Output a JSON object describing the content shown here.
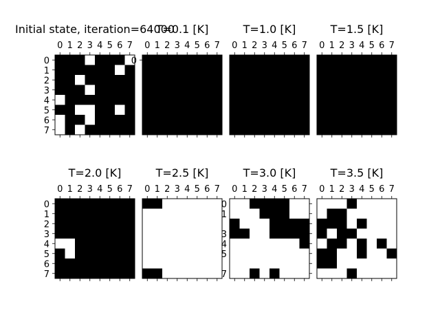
{
  "chart_data": [
    {
      "type": "heatmap",
      "title": "Initial state, iteration=64000",
      "x_ticks": [
        "0",
        "1",
        "2",
        "3",
        "4",
        "5",
        "6",
        "7"
      ],
      "y_ticks": [
        "0",
        "1",
        "2",
        "3",
        "4",
        "5",
        "6",
        "7"
      ],
      "grid": [
        [
          0,
          0,
          0,
          1,
          0,
          0,
          0,
          1
        ],
        [
          0,
          0,
          0,
          0,
          0,
          0,
          1,
          0
        ],
        [
          0,
          0,
          1,
          0,
          0,
          0,
          0,
          0
        ],
        [
          0,
          0,
          0,
          1,
          0,
          0,
          0,
          0
        ],
        [
          1,
          0,
          0,
          0,
          0,
          0,
          0,
          0
        ],
        [
          0,
          0,
          1,
          1,
          0,
          0,
          1,
          0
        ],
        [
          1,
          0,
          0,
          1,
          0,
          0,
          0,
          0
        ],
        [
          1,
          0,
          1,
          0,
          0,
          0,
          0,
          0
        ]
      ]
    },
    {
      "type": "heatmap",
      "title": "T=0.1 [K]",
      "x_ticks": [
        "0",
        "1",
        "2",
        "3",
        "4",
        "5",
        "6",
        "7"
      ],
      "y_ticks": [
        "0"
      ],
      "grid": [
        [
          0,
          0,
          0,
          0,
          0,
          0,
          0,
          0
        ],
        [
          0,
          0,
          0,
          0,
          0,
          0,
          0,
          0
        ],
        [
          0,
          0,
          0,
          0,
          0,
          0,
          0,
          0
        ],
        [
          0,
          0,
          0,
          0,
          0,
          0,
          0,
          0
        ],
        [
          0,
          0,
          0,
          0,
          0,
          0,
          0,
          0
        ],
        [
          0,
          0,
          0,
          0,
          0,
          0,
          0,
          0
        ],
        [
          0,
          0,
          0,
          0,
          0,
          0,
          0,
          0
        ],
        [
          0,
          0,
          0,
          0,
          0,
          0,
          0,
          0
        ]
      ]
    },
    {
      "type": "heatmap",
      "title": "T=1.0 [K]",
      "x_ticks": [
        "0",
        "1",
        "2",
        "3",
        "4",
        "5",
        "6",
        "7"
      ],
      "y_ticks": [],
      "grid": [
        [
          0,
          0,
          0,
          0,
          0,
          0,
          0,
          0
        ],
        [
          0,
          0,
          0,
          0,
          0,
          0,
          0,
          0
        ],
        [
          0,
          0,
          0,
          0,
          0,
          0,
          0,
          0
        ],
        [
          0,
          0,
          0,
          0,
          0,
          0,
          0,
          0
        ],
        [
          0,
          0,
          0,
          0,
          0,
          0,
          0,
          0
        ],
        [
          0,
          0,
          0,
          0,
          0,
          0,
          0,
          0
        ],
        [
          0,
          0,
          0,
          0,
          0,
          0,
          0,
          0
        ],
        [
          0,
          0,
          0,
          0,
          0,
          0,
          0,
          0
        ]
      ]
    },
    {
      "type": "heatmap",
      "title": "T=1.5 [K]",
      "x_ticks": [
        "0",
        "1",
        "2",
        "3",
        "4",
        "5",
        "6",
        "7"
      ],
      "y_ticks": [],
      "grid": [
        [
          0,
          0,
          0,
          0,
          0,
          0,
          0,
          0
        ],
        [
          0,
          0,
          0,
          0,
          0,
          0,
          0,
          0
        ],
        [
          0,
          0,
          0,
          0,
          0,
          0,
          0,
          0
        ],
        [
          0,
          0,
          0,
          0,
          0,
          0,
          0,
          0
        ],
        [
          0,
          0,
          0,
          0,
          0,
          0,
          0,
          0
        ],
        [
          0,
          0,
          0,
          0,
          0,
          0,
          0,
          0
        ],
        [
          0,
          0,
          0,
          0,
          0,
          0,
          0,
          0
        ],
        [
          0,
          0,
          0,
          0,
          0,
          0,
          0,
          0
        ]
      ]
    },
    {
      "type": "heatmap",
      "title": "T=2.0 [K]",
      "x_ticks": [
        "0",
        "1",
        "2",
        "3",
        "4",
        "5",
        "6",
        "7"
      ],
      "y_ticks": [
        "0",
        "1",
        "2",
        "3",
        "4",
        "5",
        "6",
        "7"
      ],
      "grid": [
        [
          0,
          0,
          0,
          0,
          0,
          0,
          0,
          0
        ],
        [
          0,
          0,
          0,
          0,
          0,
          0,
          0,
          0
        ],
        [
          0,
          0,
          0,
          0,
          0,
          0,
          0,
          0
        ],
        [
          0,
          0,
          0,
          0,
          0,
          0,
          0,
          0
        ],
        [
          1,
          1,
          0,
          0,
          0,
          0,
          0,
          0
        ],
        [
          0,
          1,
          0,
          0,
          0,
          0,
          0,
          0
        ],
        [
          0,
          0,
          0,
          0,
          0,
          0,
          0,
          0
        ],
        [
          0,
          0,
          0,
          0,
          0,
          0,
          0,
          0
        ]
      ]
    },
    {
      "type": "heatmap",
      "title": "T=2.5 [K]",
      "x_ticks": [
        "0",
        "1",
        "2",
        "3",
        "4",
        "5",
        "6",
        "7"
      ],
      "y_ticks": [],
      "grid": [
        [
          0,
          0,
          1,
          1,
          1,
          1,
          1,
          1
        ],
        [
          1,
          1,
          1,
          1,
          1,
          1,
          1,
          1
        ],
        [
          1,
          1,
          1,
          1,
          1,
          1,
          1,
          1
        ],
        [
          1,
          1,
          1,
          1,
          1,
          1,
          1,
          1
        ],
        [
          1,
          1,
          1,
          1,
          1,
          1,
          1,
          1
        ],
        [
          1,
          1,
          1,
          1,
          1,
          1,
          1,
          1
        ],
        [
          1,
          1,
          1,
          1,
          1,
          1,
          1,
          1
        ],
        [
          0,
          0,
          1,
          1,
          1,
          1,
          1,
          1
        ]
      ]
    },
    {
      "type": "heatmap",
      "title": "T=3.0 [K]",
      "x_ticks": [
        "0",
        "1",
        "2",
        "3",
        "4",
        "5",
        "6",
        "7"
      ],
      "y_ticks": [
        "0",
        "1",
        "3",
        "4",
        "5",
        "7"
      ],
      "y_tick_rows": [
        0,
        1,
        3,
        4,
        5,
        7
      ],
      "grid": [
        [
          1,
          1,
          0,
          0,
          0,
          0,
          1,
          1
        ],
        [
          1,
          1,
          1,
          0,
          0,
          0,
          1,
          1
        ],
        [
          0,
          1,
          1,
          1,
          0,
          0,
          0,
          0
        ],
        [
          0,
          0,
          1,
          1,
          0,
          0,
          0,
          0
        ],
        [
          1,
          1,
          1,
          1,
          1,
          1,
          1,
          0
        ],
        [
          1,
          1,
          1,
          1,
          1,
          1,
          1,
          1
        ],
        [
          1,
          1,
          1,
          1,
          1,
          1,
          1,
          1
        ],
        [
          1,
          1,
          0,
          1,
          0,
          1,
          1,
          1
        ]
      ]
    },
    {
      "type": "heatmap",
      "title": "T=3.5 [K]",
      "x_ticks": [
        "0",
        "1",
        "2",
        "3",
        "4",
        "5",
        "6",
        "7"
      ],
      "y_ticks": [],
      "grid": [
        [
          1,
          1,
          1,
          0,
          1,
          1,
          1,
          1
        ],
        [
          1,
          0,
          0,
          1,
          1,
          1,
          1,
          1
        ],
        [
          0,
          0,
          0,
          1,
          0,
          1,
          1,
          1
        ],
        [
          0,
          1,
          0,
          0,
          1,
          1,
          1,
          1
        ],
        [
          1,
          0,
          0,
          1,
          0,
          1,
          0,
          1
        ],
        [
          0,
          0,
          1,
          1,
          0,
          1,
          1,
          0
        ],
        [
          0,
          0,
          1,
          1,
          1,
          1,
          1,
          1
        ],
        [
          1,
          1,
          1,
          0,
          1,
          1,
          1,
          1
        ]
      ]
    }
  ]
}
